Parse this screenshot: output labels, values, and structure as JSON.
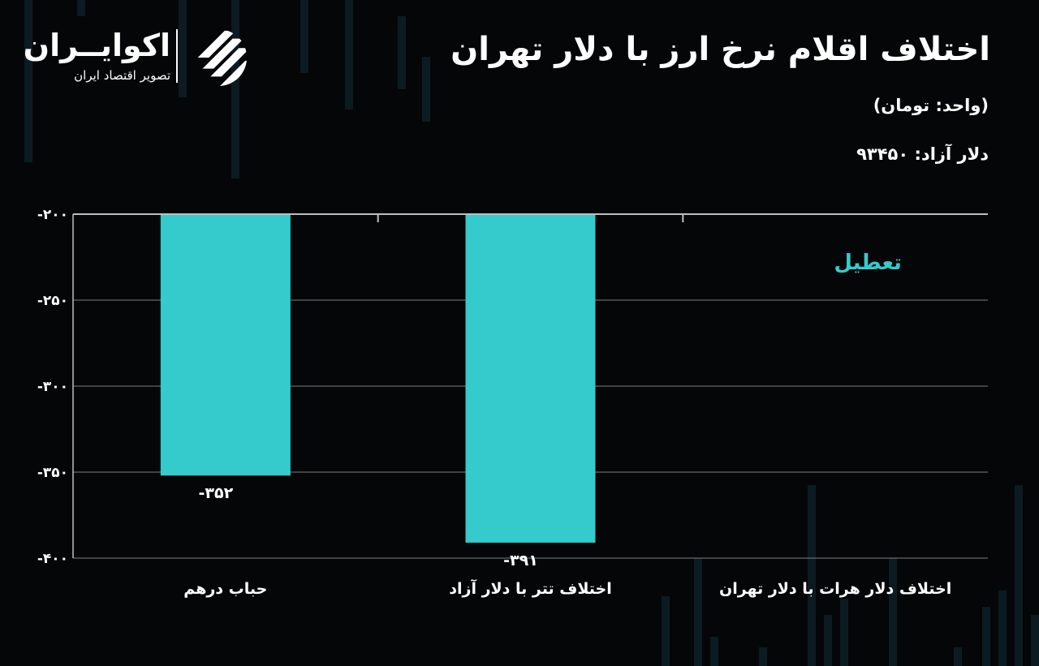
{
  "header": {
    "title": "اختلاف اقلام نرخ ارز با دلار تهران",
    "unit": "(واحد: تومان)",
    "free_dollar": "دلار آزاد: ۹۳۴۵۰"
  },
  "logo": {
    "name": "اکوایــران",
    "tagline": "تصویر اقتصاد ایران"
  },
  "colors": {
    "background": "#050607",
    "bar": "#35cbcc",
    "grid": "#7f7f7f",
    "text": "#ffffff"
  },
  "chart_data": {
    "type": "bar",
    "title": "اختلاف اقلام نرخ ارز با دلار تهران",
    "categories": [
      "حباب درهم",
      "اختلاف تتر با دلار آزاد",
      "اختلاف دلار هرات با دلار تهران"
    ],
    "values": [
      -352,
      -391,
      null
    ],
    "value_labels": [
      "-۳۵۲",
      "-۳۹۱",
      ""
    ],
    "ylim": [
      -400,
      -200
    ],
    "yticks": [
      -200,
      -250,
      -300,
      -350,
      -400
    ],
    "ytick_labels": [
      "-۲۰۰",
      "-۲۵۰",
      "-۳۰۰",
      "-۳۵۰",
      "-۴۰۰"
    ],
    "annotations": [
      {
        "category_index": 2,
        "text": "تعطیل"
      }
    ],
    "grid": true,
    "legend": "none"
  }
}
